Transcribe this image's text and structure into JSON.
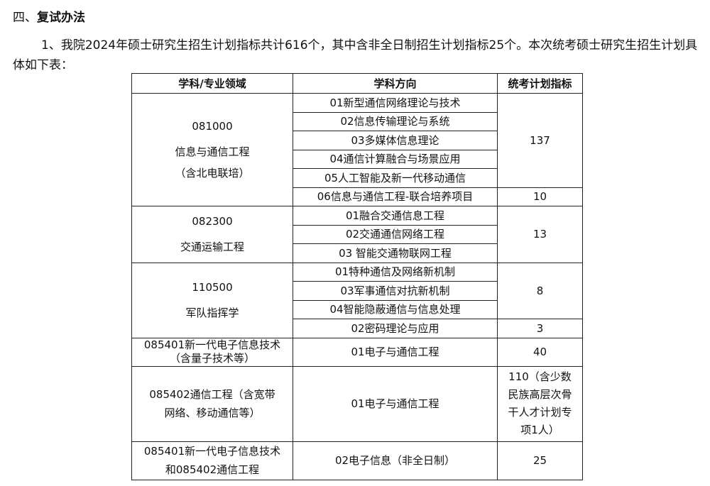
{
  "section": {
    "number": "四、",
    "title": "复试办法"
  },
  "paragraph": "1、我院2024年硕士研究生招生计划指标共计616个，其中含非全日制招生计划指标25个。本次统考硕士研究生招生计划具体如下表：",
  "table": {
    "headers": [
      "学科/专业领域",
      "学科方向",
      "统考计划指标"
    ],
    "groups": [
      {
        "code": "081000",
        "name": "信息与通信工程",
        "note": "（含北电联培）",
        "directions": [
          "01新型通信网络理论与技术",
          "02信息传输理论与系统",
          "03多媒体信息理论",
          "04通信计算融合与场景应用",
          "05人工智能及新一代移动通信",
          "06信息与通信工程-联合培养项目"
        ],
        "quotas": [
          "137",
          "10"
        ]
      },
      {
        "code": "082300",
        "name": "交通运输工程",
        "directions": [
          "01融合交通信息工程",
          "02交通通信网络工程",
          "03 智能交通物联网工程"
        ],
        "quotas": [
          "13"
        ]
      },
      {
        "code": "110500",
        "name": "军队指挥学",
        "directions": [
          "01特种通信及网络新机制",
          "03军事通信对抗新机制",
          "04智能隐蔽通信与信息处理",
          "02密码理论与应用"
        ],
        "quotas": [
          "8",
          "3"
        ]
      },
      {
        "field": "085401新一代电子信息技术（含量子技术等）",
        "direction": "01电子与通信工程",
        "quota": "40"
      },
      {
        "field": "085402通信工程（含宽带网络、移动通信等）",
        "direction": "01电子与通信工程",
        "quota": "110（含少数民族高层次骨干人才计划专项1人）"
      },
      {
        "field": "085401新一代电子信息技术和085402通信工程",
        "direction": "02电子信息（非全日制）",
        "quota": "25"
      }
    ]
  }
}
